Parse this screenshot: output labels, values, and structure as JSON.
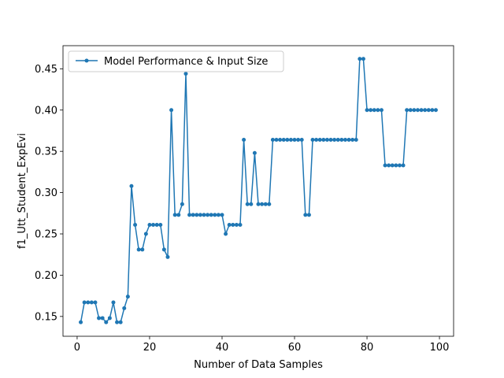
{
  "chart_data": {
    "type": "line",
    "title": "",
    "xlabel": "Number of Data Samples",
    "ylabel": "f1_Utt_Student_ExpEvi",
    "xlim": [
      -3.9,
      103.9
    ],
    "ylim": [
      0.126,
      0.478
    ],
    "xticks": [
      0,
      20,
      40,
      60,
      80,
      100
    ],
    "yticks": [
      0.15,
      0.2,
      0.25,
      0.3,
      0.35,
      0.4,
      0.45
    ],
    "ytick_labels": [
      "0.15",
      "0.20",
      "0.25",
      "0.30",
      "0.35",
      "0.40",
      "0.45"
    ],
    "grid": false,
    "legend_position": "upper-left",
    "series": [
      {
        "name": "Model Performance & Input Size",
        "color": "#1f77b4",
        "marker": "circle",
        "x": [
          1,
          2,
          3,
          4,
          5,
          6,
          7,
          8,
          9,
          10,
          11,
          12,
          13,
          14,
          15,
          16,
          17,
          18,
          19,
          20,
          21,
          22,
          23,
          24,
          25,
          26,
          27,
          28,
          29,
          30,
          31,
          32,
          33,
          34,
          35,
          36,
          37,
          38,
          39,
          40,
          41,
          42,
          43,
          44,
          45,
          46,
          47,
          48,
          49,
          50,
          51,
          52,
          53,
          54,
          55,
          56,
          57,
          58,
          59,
          60,
          61,
          62,
          63,
          64,
          65,
          66,
          67,
          68,
          69,
          70,
          71,
          72,
          73,
          74,
          75,
          76,
          77,
          78,
          79,
          80,
          81,
          82,
          83,
          84,
          85,
          86,
          87,
          88,
          89,
          90,
          91,
          92,
          93,
          94,
          95,
          96,
          97,
          98,
          99
        ],
        "y": [
          0.143,
          0.167,
          0.167,
          0.167,
          0.167,
          0.148,
          0.148,
          0.143,
          0.148,
          0.167,
          0.143,
          0.143,
          0.16,
          0.174,
          0.308,
          0.261,
          0.231,
          0.231,
          0.25,
          0.261,
          0.261,
          0.261,
          0.261,
          0.231,
          0.222,
          0.4,
          0.273,
          0.273,
          0.286,
          0.444,
          0.273,
          0.273,
          0.273,
          0.273,
          0.273,
          0.273,
          0.273,
          0.273,
          0.273,
          0.273,
          0.25,
          0.261,
          0.261,
          0.261,
          0.261,
          0.364,
          0.286,
          0.286,
          0.348,
          0.286,
          0.286,
          0.286,
          0.286,
          0.364,
          0.364,
          0.364,
          0.364,
          0.364,
          0.364,
          0.364,
          0.364,
          0.364,
          0.273,
          0.273,
          0.364,
          0.364,
          0.364,
          0.364,
          0.364,
          0.364,
          0.364,
          0.364,
          0.364,
          0.364,
          0.364,
          0.364,
          0.364,
          0.462,
          0.462,
          0.4,
          0.4,
          0.4,
          0.4,
          0.4,
          0.333,
          0.333,
          0.333,
          0.333,
          0.333,
          0.333,
          0.4,
          0.4,
          0.4,
          0.4,
          0.4,
          0.4,
          0.4,
          0.4,
          0.4
        ]
      }
    ]
  }
}
